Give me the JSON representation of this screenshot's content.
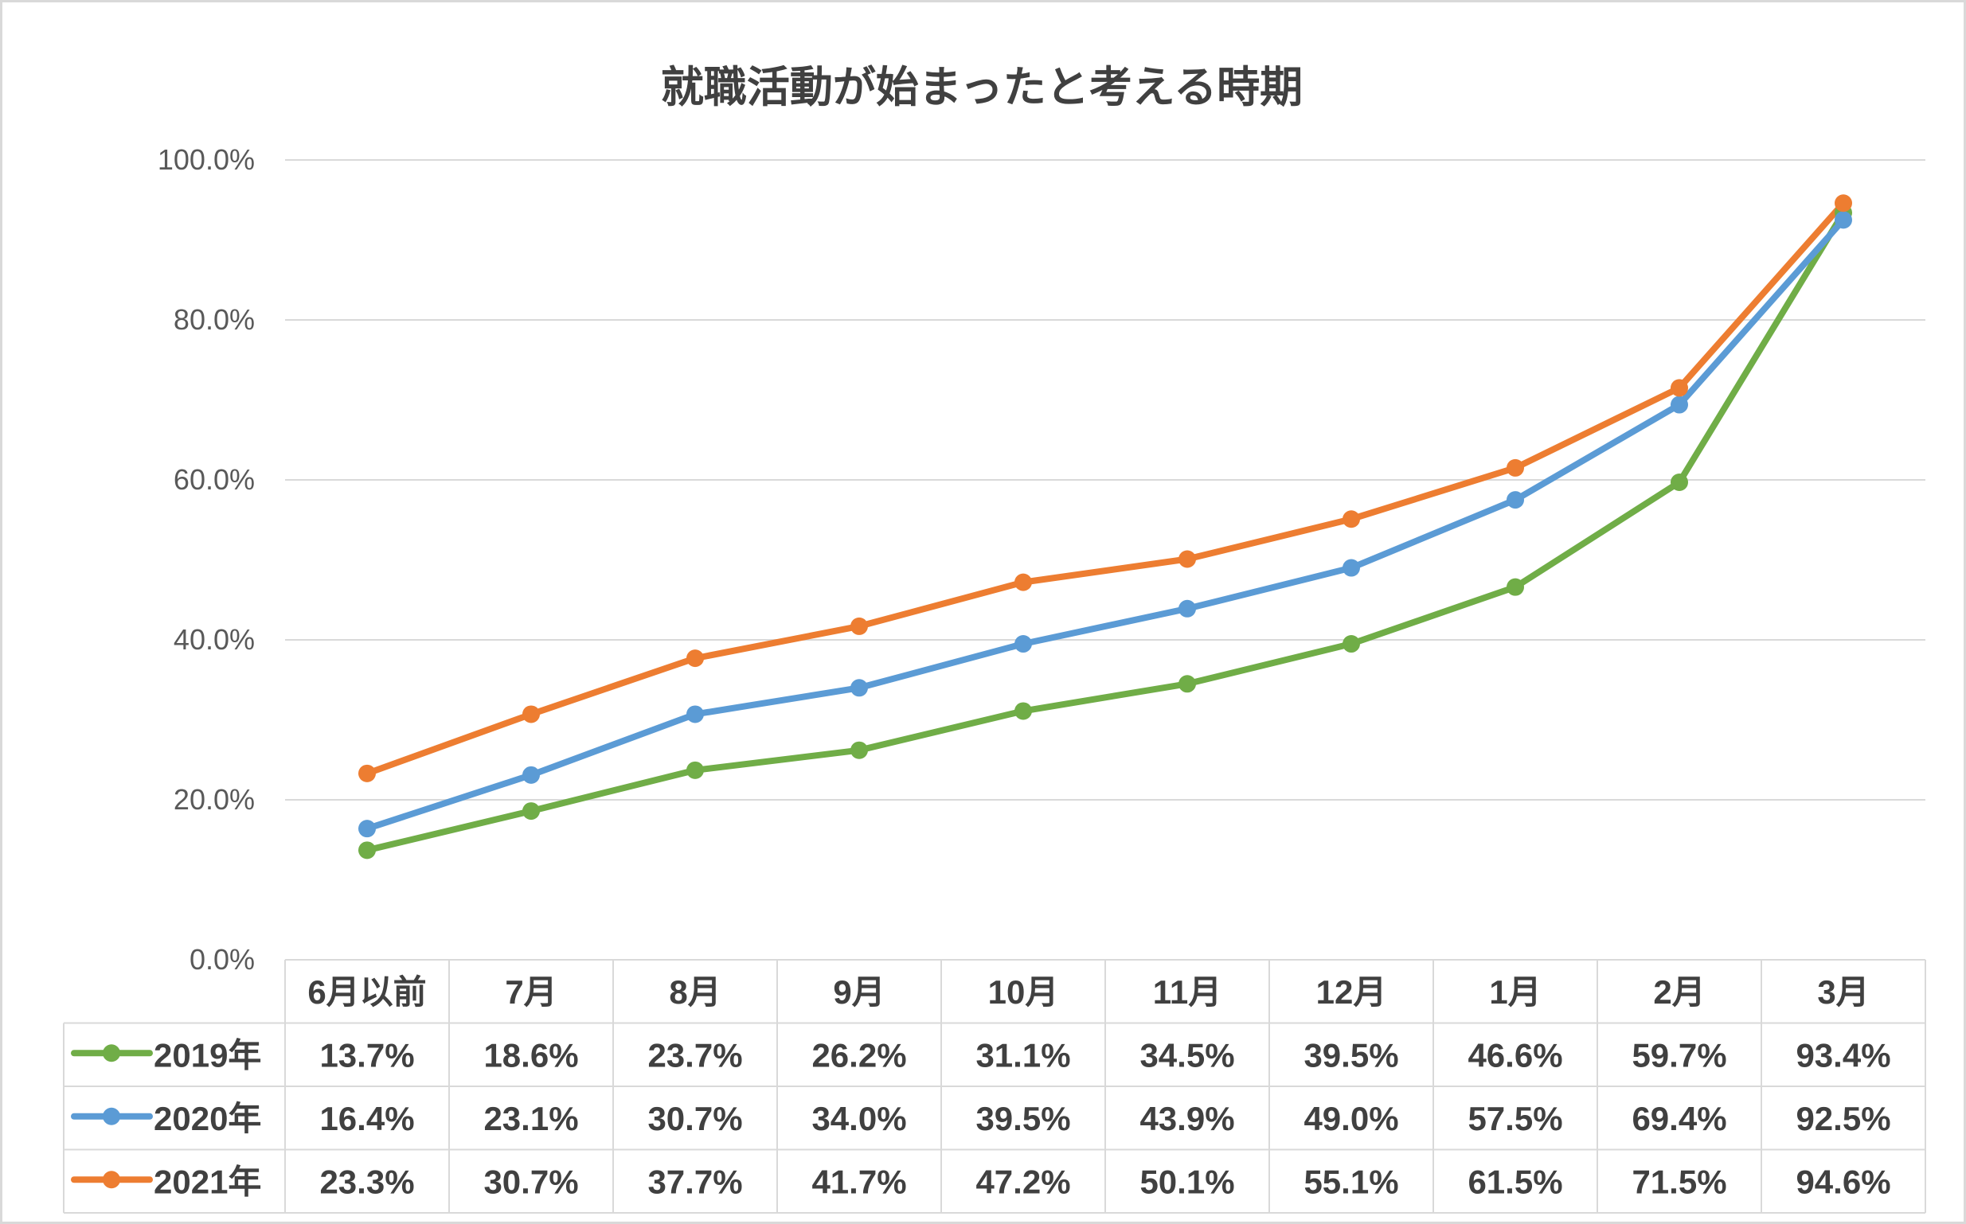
{
  "chart_data": {
    "type": "line",
    "title": "就職活動が始まったと考える時期",
    "categories": [
      "6月以前",
      "7月",
      "8月",
      "9月",
      "10月",
      "11月",
      "12月",
      "1月",
      "2月",
      "3月"
    ],
    "ylim": [
      0,
      100
    ],
    "yticks": [
      "0.0%",
      "20.0%",
      "40.0%",
      "60.0%",
      "80.0%",
      "100.0%"
    ],
    "grid": true,
    "legend": "data-table",
    "series": [
      {
        "name": "2019年",
        "color": "#70ad47",
        "values": [
          13.7,
          18.6,
          23.7,
          26.2,
          31.1,
          34.5,
          39.5,
          46.6,
          59.7,
          93.4
        ],
        "labels": [
          "13.7%",
          "18.6%",
          "23.7%",
          "26.2%",
          "31.1%",
          "34.5%",
          "39.5%",
          "46.6%",
          "59.7%",
          "93.4%"
        ]
      },
      {
        "name": "2020年",
        "color": "#5b9bd5",
        "values": [
          16.4,
          23.1,
          30.7,
          34.0,
          39.5,
          43.9,
          49.0,
          57.5,
          69.4,
          92.5
        ],
        "labels": [
          "16.4%",
          "23.1%",
          "30.7%",
          "34.0%",
          "39.5%",
          "43.9%",
          "49.0%",
          "57.5%",
          "69.4%",
          "92.5%"
        ]
      },
      {
        "name": "2021年",
        "color": "#ed7d31",
        "values": [
          23.3,
          30.7,
          37.7,
          41.7,
          47.2,
          50.1,
          55.1,
          61.5,
          71.5,
          94.6
        ],
        "labels": [
          "23.3%",
          "30.7%",
          "37.7%",
          "41.7%",
          "47.2%",
          "50.1%",
          "55.1%",
          "61.5%",
          "71.5%",
          "94.6%"
        ]
      }
    ]
  }
}
